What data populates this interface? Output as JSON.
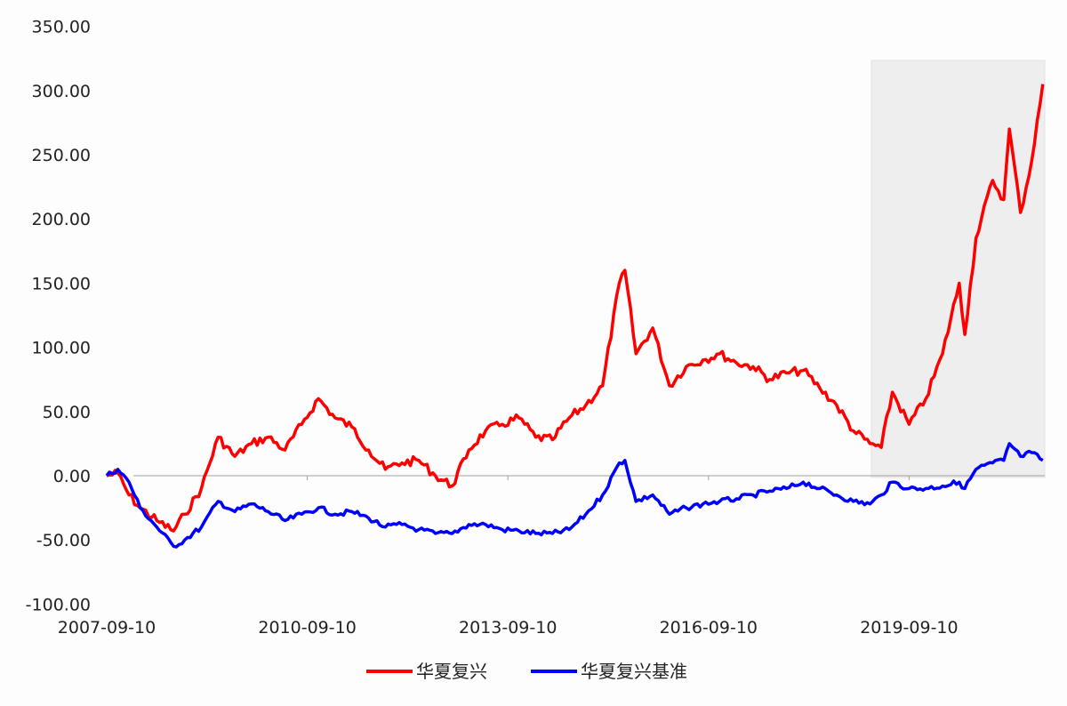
{
  "chart_data": {
    "type": "line",
    "title": "",
    "xlabel": "",
    "ylabel": "",
    "ylim": [
      -100,
      350
    ],
    "yticks": [
      "350.00",
      "300.00",
      "250.00",
      "200.00",
      "150.00",
      "100.00",
      "50.00",
      "0.00",
      "-50.00",
      "-100.00"
    ],
    "xticks": [
      "2007-09-10",
      "2010-09-10",
      "2013-09-10",
      "2016-09-10",
      "2019-09-10"
    ],
    "grid": false,
    "legend_position": "bottom",
    "highlight_region": {
      "x_start": "2019-04",
      "x_end": "2021-09",
      "color": "#eeeeef"
    },
    "x": [
      "2007-09",
      "2007-11",
      "2008-01",
      "2008-03",
      "2008-06",
      "2008-09",
      "2008-11",
      "2009-02",
      "2009-05",
      "2009-08",
      "2009-11",
      "2010-02",
      "2010-05",
      "2010-08",
      "2010-11",
      "2011-02",
      "2011-05",
      "2011-08",
      "2011-11",
      "2012-02",
      "2012-05",
      "2012-08",
      "2012-11",
      "2013-02",
      "2013-05",
      "2013-08",
      "2013-11",
      "2014-02",
      "2014-05",
      "2014-08",
      "2014-11",
      "2015-02",
      "2015-05",
      "2015-06",
      "2015-08",
      "2015-11",
      "2016-02",
      "2016-05",
      "2016-08",
      "2016-11",
      "2017-02",
      "2017-05",
      "2017-08",
      "2017-11",
      "2018-02",
      "2018-05",
      "2018-08",
      "2018-11",
      "2019-02",
      "2019-04",
      "2019-06",
      "2019-09",
      "2019-12",
      "2020-03",
      "2020-06",
      "2020-07",
      "2020-09",
      "2020-12",
      "2021-02",
      "2021-03",
      "2021-05",
      "2021-07",
      "2021-09"
    ],
    "series": [
      {
        "name": "华夏复兴",
        "color": "#ff0000",
        "values": [
          0,
          2,
          -15,
          -25,
          -35,
          -43,
          -30,
          -10,
          30,
          15,
          25,
          30,
          20,
          40,
          60,
          45,
          38,
          20,
          5,
          10,
          12,
          0,
          -8,
          20,
          35,
          40,
          45,
          30,
          28,
          45,
          55,
          70,
          150,
          160,
          95,
          115,
          70,
          85,
          90,
          95,
          88,
          85,
          75,
          80,
          82,
          68,
          55,
          35,
          25,
          22,
          65,
          40,
          60,
          95,
          150,
          110,
          185,
          230,
          215,
          270,
          205,
          245,
          305
        ]
      },
      {
        "name": "华夏复兴基准",
        "color": "#0000ff",
        "values": [
          0,
          5,
          -5,
          -25,
          -40,
          -55,
          -50,
          -40,
          -20,
          -28,
          -22,
          -28,
          -35,
          -30,
          -25,
          -30,
          -28,
          -33,
          -40,
          -38,
          -42,
          -45,
          -45,
          -38,
          -38,
          -42,
          -43,
          -45,
          -45,
          -42,
          -30,
          -15,
          10,
          12,
          -20,
          -15,
          -30,
          -25,
          -22,
          -20,
          -18,
          -15,
          -12,
          -10,
          -5,
          -10,
          -15,
          -20,
          -22,
          -15,
          -5,
          -10,
          -10,
          -8,
          -5,
          -10,
          5,
          10,
          12,
          25,
          15,
          18,
          12
        ]
      }
    ]
  },
  "legend": {
    "items": [
      {
        "label": "华夏复兴",
        "color": "#ff0000"
      },
      {
        "label": "华夏复兴基准",
        "color": "#0000ff"
      }
    ]
  }
}
